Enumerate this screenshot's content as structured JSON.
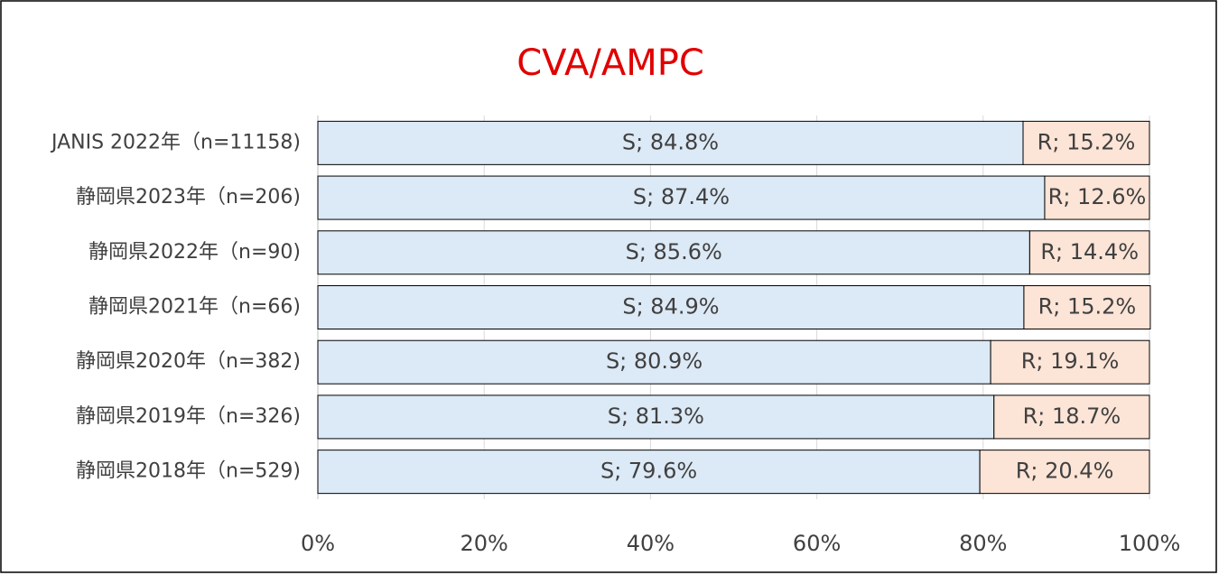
{
  "chart_data": {
    "type": "stacked_barh",
    "title": "CVA/AMPC",
    "categories": [
      "JANIS 2022年（n=11158)",
      "静岡県2023年（n=206)",
      "静岡県2022年（n=90)",
      "静岡県2021年（n=66)",
      "静岡県2020年（n=382)",
      "静岡県2019年（n=326)",
      "静岡県2018年（n=529)"
    ],
    "series": [
      {
        "name": "S",
        "color": "#dce9f6",
        "values": [
          84.8,
          87.4,
          85.6,
          84.9,
          80.9,
          81.3,
          79.6
        ],
        "value_labels": [
          "S; 84.8%",
          "S; 87.4%",
          "S; 85.6%",
          "S; 84.9%",
          "S; 80.9%",
          "S; 81.3%",
          "S; 79.6%"
        ]
      },
      {
        "name": "R",
        "color": "#fce4d6",
        "values": [
          15.2,
          12.6,
          14.4,
          15.2,
          19.1,
          18.7,
          20.4
        ],
        "value_labels": [
          "R; 15.2%",
          "R; 12.6%",
          "R; 14.4%",
          "R; 15.2%",
          "R; 19.1%",
          "R; 18.7%",
          "R; 20.4%"
        ]
      }
    ],
    "xlim": [
      0,
      100
    ],
    "xticks": [
      {
        "value": 0,
        "label": "0%"
      },
      {
        "value": 20,
        "label": "20%"
      },
      {
        "value": 40,
        "label": "40%"
      },
      {
        "value": 60,
        "label": "60%"
      },
      {
        "value": 80,
        "label": "80%"
      },
      {
        "value": 100,
        "label": "100%"
      }
    ],
    "grid": true
  }
}
